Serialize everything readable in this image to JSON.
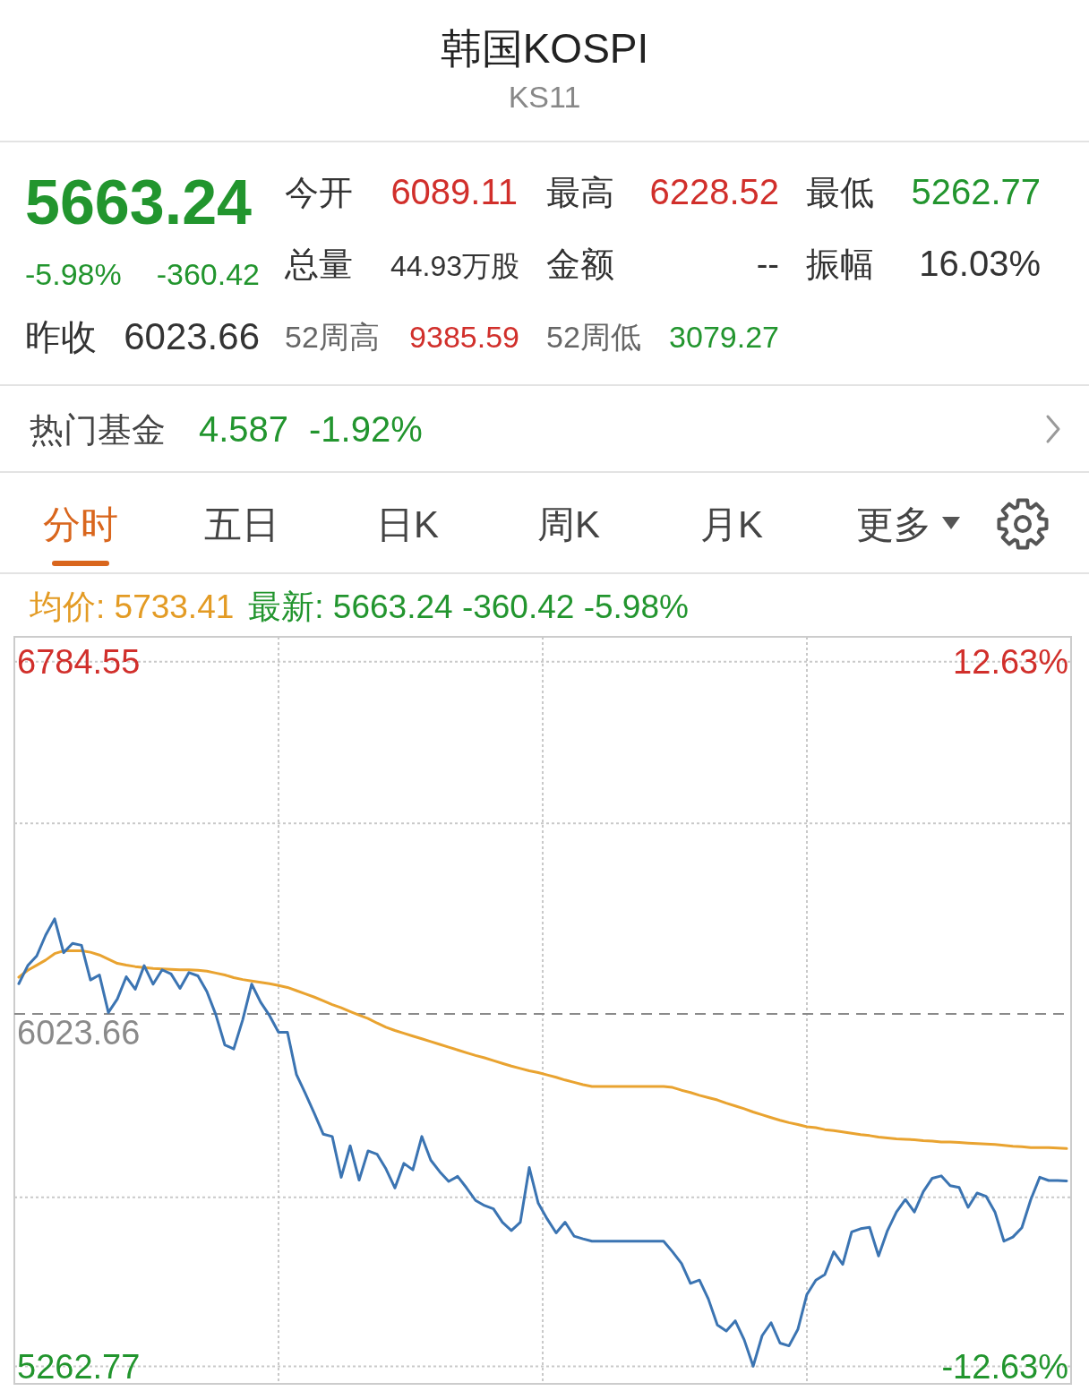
{
  "chart_data": [
    {
      "type": "other",
      "title": "韩国KOSPI",
      "subtitle": "KS11",
      "annotations": [
        "5663.24",
        "-5.98%",
        "-360.42",
        "昨收",
        "6023.66",
        "今开",
        "6089.11",
        "最高",
        "6228.52",
        "最低",
        "5262.77",
        "总量",
        "44.93万股",
        "金额",
        "--",
        "振幅",
        "16.03%",
        "52周高",
        "9385.59",
        "52周低",
        "3079.27",
        "热门基金",
        "4.587",
        "-1.92%",
        "分时",
        "五日",
        "日K",
        "周K",
        "月K",
        "更多"
      ]
    },
    {
      "type": "line",
      "categories": [
        null,
        null,
        null,
        null,
        null,
        null,
        null,
        null,
        null,
        null,
        null,
        null,
        null,
        null,
        null,
        null,
        null,
        null,
        null,
        null,
        null,
        null,
        null,
        null,
        null,
        null,
        null,
        null,
        null,
        null,
        null,
        null,
        null,
        null,
        null,
        null,
        null,
        null,
        null,
        null,
        null,
        null,
        null,
        null,
        null,
        null,
        null,
        null,
        null,
        null,
        null,
        null,
        null,
        null,
        null,
        null,
        null,
        null,
        null,
        null,
        null,
        null,
        null,
        null,
        null,
        null,
        null,
        null,
        null,
        null,
        null,
        null,
        null,
        null,
        null,
        null,
        null,
        null,
        null,
        null,
        null,
        null,
        null,
        null,
        null,
        null,
        null,
        null,
        null,
        null,
        null,
        null,
        null,
        null,
        null,
        null,
        null,
        null,
        null,
        null,
        null,
        null,
        null,
        null,
        null,
        null,
        null,
        null,
        null,
        null,
        null,
        null,
        null,
        null,
        null,
        null,
        null,
        null
      ],
      "series": [
        {
          "color": "#e9a330",
          "values": [
            6103,
            6118,
            6129,
            6140,
            6154,
            6160,
            6160,
            6160,
            6157,
            6151,
            6142,
            6133,
            6129,
            6126,
            6124,
            6122,
            6121,
            6120,
            6119,
            6119,
            6118,
            6116,
            6112,
            6108,
            6102,
            6098,
            6095,
            6092,
            6089,
            6085,
            6081,
            6074,
            6067,
            6060,
            6052,
            6044,
            6037,
            6029,
            6021,
            6014,
            6004,
            5995,
            5988,
            5982,
            5976,
            5970,
            5964,
            5958,
            5952,
            5946,
            5940,
            5934,
            5929,
            5923,
            5917,
            5911,
            5906,
            5901,
            5897,
            5892,
            5887,
            5881,
            5876,
            5871,
            5867,
            5867,
            5867,
            5867,
            5867,
            5867,
            5867,
            5867,
            5867,
            5865,
            5859,
            5854,
            5848,
            5843,
            5838,
            5831,
            5825,
            5819,
            5812,
            5806,
            5800,
            5794,
            5789,
            5785,
            5780,
            5778,
            5774,
            5772,
            5769,
            5766,
            5763,
            5761,
            5758,
            5756,
            5754,
            5753,
            5752,
            5750,
            5749,
            5747,
            5747,
            5746,
            5745,
            5744,
            5743,
            5742,
            5740,
            5738,
            5737,
            5735,
            5735,
            5735,
            5734,
            5733
          ]
        },
        {
          "color": "#3b74b2",
          "values": [
            6089,
            6128,
            6149,
            6194,
            6229,
            6156,
            6176,
            6172,
            6097,
            6108,
            6027,
            6056,
            6104,
            6077,
            6128,
            6088,
            6119,
            6110,
            6079,
            6113,
            6106,
            6072,
            6022,
            5957,
            5948,
            6011,
            6088,
            6049,
            6020,
            5984,
            5984,
            5893,
            5852,
            5809,
            5764,
            5759,
            5671,
            5739,
            5665,
            5728,
            5721,
            5689,
            5648,
            5701,
            5687,
            5759,
            5708,
            5683,
            5662,
            5673,
            5648,
            5621,
            5610,
            5603,
            5574,
            5556,
            5574,
            5692,
            5615,
            5581,
            5551,
            5574,
            5544,
            5538,
            5533,
            5533,
            5533,
            5533,
            5533,
            5533,
            5533,
            5533,
            5533,
            5510,
            5485,
            5442,
            5449,
            5408,
            5352,
            5339,
            5361,
            5320,
            5263,
            5329,
            5357,
            5313,
            5307,
            5343,
            5418,
            5449,
            5461,
            5510,
            5483,
            5553,
            5560,
            5563,
            5501,
            5556,
            5596,
            5623,
            5596,
            5640,
            5669,
            5674,
            5653,
            5649,
            5606,
            5637,
            5630,
            5596,
            5533,
            5542,
            5562,
            5623,
            5671,
            5664,
            5664,
            5663
          ]
        }
      ],
      "ylim": [
        5225,
        6838
      ],
      "yticks": [
        5262.77,
        {
          "value": 5628,
          "label": null
        },
        {
          "value": 6435,
          "label": null
        },
        6784.55
      ],
      "y2lim": [
        -13.26,
        13.51
      ],
      "y2ticks": [
        {
          "value": -12.63,
          "label": "-12.63%"
        },
        {
          "value": 12.63,
          "label": "12.63%"
        }
      ],
      "ref_lines": [
        {
          "axis": "y",
          "value": 6023.66,
          "label": "6023.66",
          "line_style": "dashed",
          "color": "#8a8a8a"
        }
      ],
      "grid": true,
      "tick_labels": "y",
      "annotations": [
        "均价: 5733.41",
        "最新: 5663.24 -360.42 -5.98%"
      ]
    }
  ]
}
